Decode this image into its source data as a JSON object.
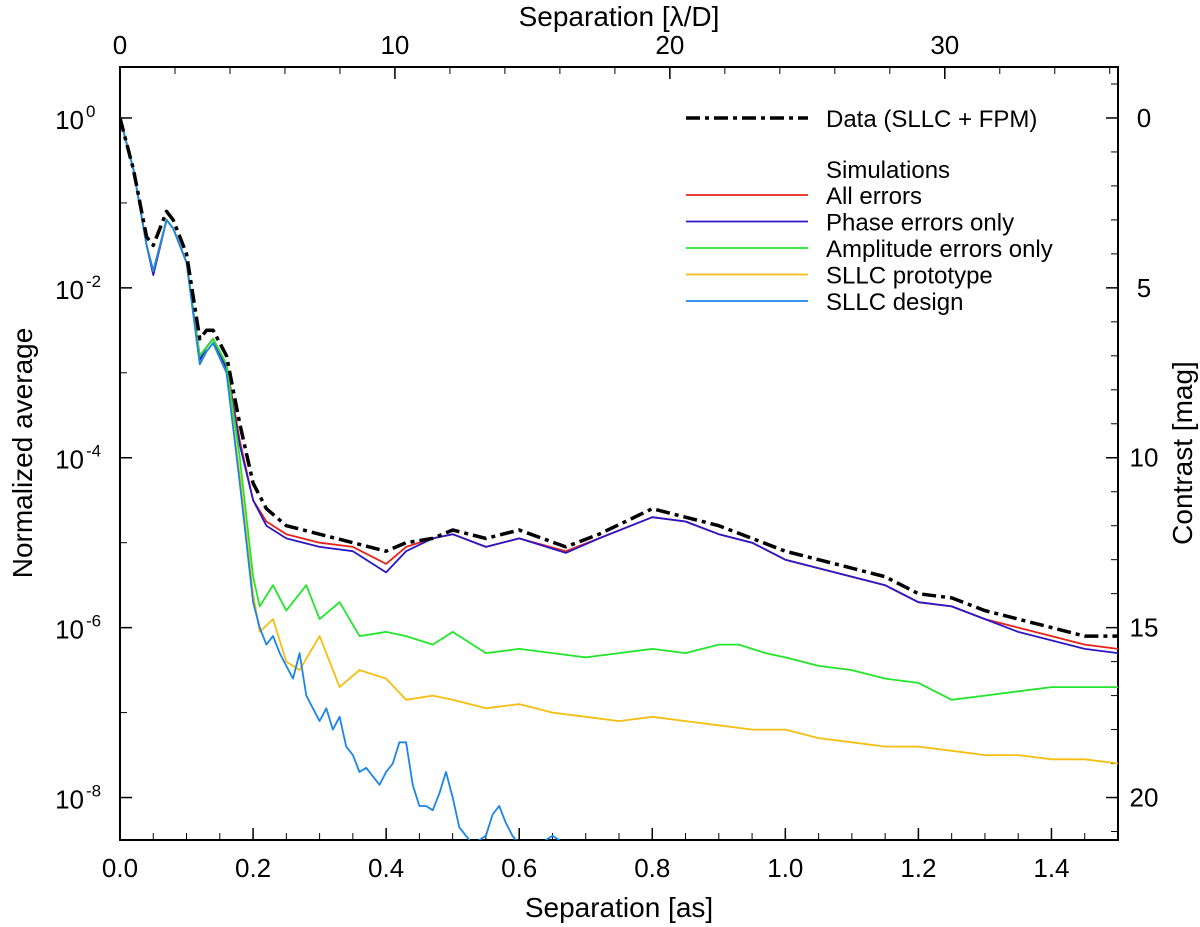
{
  "chart_data": {
    "type": "line",
    "xlabel": "Separation [as]",
    "x2label": "Separation [λ/D]",
    "ylabel": "Normalized average",
    "y2label": "Contrast [mag]",
    "xlim": [
      0.0,
      1.5
    ],
    "x2lim": [
      0,
      36.3
    ],
    "ylim_log10": [
      -8.5,
      0.6
    ],
    "y2lim": [
      -1.5,
      21.25
    ],
    "yscale": "log",
    "grid": false,
    "legend_position": "top-right",
    "x_ticks": [
      "0.0",
      "0.2",
      "0.4",
      "0.6",
      "0.8",
      "1.0",
      "1.2",
      "1.4"
    ],
    "x_tick_values": [
      0.0,
      0.2,
      0.4,
      0.6,
      0.8,
      1.0,
      1.2,
      1.4
    ],
    "x2_ticks": [
      "0",
      "10",
      "20",
      "30"
    ],
    "x2_tick_values": [
      0,
      10,
      20,
      30
    ],
    "y_ticks": [
      {
        "base": "10",
        "exp": "0",
        "log10": 0
      },
      {
        "base": "10",
        "exp": "-2",
        "log10": -2
      },
      {
        "base": "10",
        "exp": "-4",
        "log10": -4
      },
      {
        "base": "10",
        "exp": "-6",
        "log10": -6
      },
      {
        "base": "10",
        "exp": "-8",
        "log10": -8
      }
    ],
    "y2_ticks": [
      "0",
      "5",
      "10",
      "15",
      "20"
    ],
    "y2_tick_values": [
      0,
      5,
      10,
      15,
      20
    ],
    "legend_heading": "Simulations",
    "series": [
      {
        "name": "Data (SLLC + FPM)",
        "color": "#000000",
        "style": "dash-dot",
        "x": [
          0.0,
          0.02,
          0.04,
          0.05,
          0.07,
          0.08,
          0.1,
          0.12,
          0.13,
          0.14,
          0.16,
          0.18,
          0.2,
          0.22,
          0.25,
          0.3,
          0.35,
          0.4,
          0.43,
          0.47,
          0.5,
          0.55,
          0.6,
          0.67,
          0.72,
          0.8,
          0.85,
          0.9,
          0.95,
          1.0,
          1.05,
          1.1,
          1.15,
          1.2,
          1.25,
          1.3,
          1.35,
          1.4,
          1.45,
          1.5
        ],
        "y_log10": [
          0,
          -0.6,
          -1.4,
          -1.5,
          -1.1,
          -1.2,
          -1.6,
          -2.6,
          -2.5,
          -2.5,
          -2.8,
          -3.6,
          -4.3,
          -4.6,
          -4.8,
          -4.9,
          -5.0,
          -5.1,
          -5.0,
          -4.95,
          -4.85,
          -4.95,
          -4.85,
          -5.05,
          -4.9,
          -4.6,
          -4.7,
          -4.8,
          -4.95,
          -5.1,
          -5.2,
          -5.3,
          -5.4,
          -5.6,
          -5.65,
          -5.8,
          -5.9,
          -6.0,
          -6.1,
          -6.1
        ]
      },
      {
        "name": "All errors",
        "color": "#e8231a",
        "style": "solid",
        "x": [
          0.0,
          0.02,
          0.04,
          0.05,
          0.07,
          0.08,
          0.1,
          0.12,
          0.13,
          0.14,
          0.16,
          0.18,
          0.2,
          0.22,
          0.25,
          0.3,
          0.35,
          0.4,
          0.43,
          0.47,
          0.5,
          0.55,
          0.6,
          0.67,
          0.72,
          0.8,
          0.85,
          0.9,
          0.95,
          1.0,
          1.05,
          1.1,
          1.15,
          1.2,
          1.25,
          1.3,
          1.35,
          1.4,
          1.45,
          1.5
        ],
        "y_log10": [
          0,
          -0.6,
          -1.5,
          -1.8,
          -1.2,
          -1.3,
          -1.7,
          -2.8,
          -2.7,
          -2.6,
          -2.9,
          -3.8,
          -4.5,
          -4.75,
          -4.9,
          -5.0,
          -5.05,
          -5.25,
          -5.05,
          -4.95,
          -4.9,
          -5.05,
          -4.95,
          -5.1,
          -4.95,
          -4.7,
          -4.75,
          -4.9,
          -5.0,
          -5.2,
          -5.3,
          -5.4,
          -5.5,
          -5.7,
          -5.75,
          -5.9,
          -6.0,
          -6.1,
          -6.2,
          -6.25
        ]
      },
      {
        "name": "Phase errors only",
        "color": "#2a18c8",
        "style": "solid",
        "x": [
          0.0,
          0.02,
          0.04,
          0.05,
          0.07,
          0.08,
          0.1,
          0.12,
          0.13,
          0.14,
          0.16,
          0.18,
          0.2,
          0.22,
          0.25,
          0.3,
          0.35,
          0.4,
          0.43,
          0.47,
          0.5,
          0.55,
          0.6,
          0.67,
          0.72,
          0.8,
          0.85,
          0.9,
          0.95,
          1.0,
          1.05,
          1.1,
          1.15,
          1.2,
          1.25,
          1.3,
          1.35,
          1.4,
          1.45,
          1.5
        ],
        "y_log10": [
          0,
          -0.6,
          -1.5,
          -1.85,
          -1.2,
          -1.3,
          -1.7,
          -2.85,
          -2.7,
          -2.6,
          -2.95,
          -3.85,
          -4.5,
          -4.8,
          -4.95,
          -5.05,
          -5.1,
          -5.35,
          -5.1,
          -4.95,
          -4.9,
          -5.05,
          -4.95,
          -5.12,
          -4.95,
          -4.7,
          -4.75,
          -4.9,
          -5.0,
          -5.2,
          -5.3,
          -5.4,
          -5.5,
          -5.7,
          -5.75,
          -5.9,
          -6.05,
          -6.15,
          -6.25,
          -6.3
        ]
      },
      {
        "name": "Amplitude errors only",
        "color": "#22e62a",
        "style": "solid",
        "x": [
          0.0,
          0.02,
          0.04,
          0.05,
          0.07,
          0.08,
          0.1,
          0.12,
          0.13,
          0.14,
          0.16,
          0.18,
          0.2,
          0.21,
          0.23,
          0.25,
          0.28,
          0.3,
          0.33,
          0.36,
          0.4,
          0.43,
          0.47,
          0.5,
          0.55,
          0.6,
          0.65,
          0.7,
          0.75,
          0.8,
          0.85,
          0.9,
          0.93,
          0.97,
          1.0,
          1.05,
          1.1,
          1.15,
          1.2,
          1.25,
          1.3,
          1.35,
          1.4,
          1.45,
          1.5
        ],
        "y_log10": [
          0,
          -0.6,
          -1.5,
          -1.8,
          -1.2,
          -1.3,
          -1.7,
          -2.8,
          -2.7,
          -2.6,
          -2.9,
          -4.0,
          -5.4,
          -5.75,
          -5.5,
          -5.8,
          -5.5,
          -5.9,
          -5.7,
          -6.1,
          -6.05,
          -6.1,
          -6.2,
          -6.05,
          -6.3,
          -6.25,
          -6.3,
          -6.35,
          -6.3,
          -6.25,
          -6.3,
          -6.2,
          -6.2,
          -6.3,
          -6.35,
          -6.45,
          -6.5,
          -6.6,
          -6.65,
          -6.85,
          -6.8,
          -6.75,
          -6.7,
          -6.7,
          -6.7
        ]
      },
      {
        "name": "SLLC prototype",
        "color": "#f6be10",
        "style": "solid",
        "x": [
          0.0,
          0.02,
          0.04,
          0.05,
          0.07,
          0.08,
          0.1,
          0.12,
          0.13,
          0.14,
          0.16,
          0.18,
          0.2,
          0.21,
          0.23,
          0.25,
          0.27,
          0.3,
          0.33,
          0.36,
          0.4,
          0.43,
          0.47,
          0.5,
          0.55,
          0.6,
          0.65,
          0.7,
          0.75,
          0.8,
          0.85,
          0.9,
          0.95,
          1.0,
          1.05,
          1.1,
          1.15,
          1.2,
          1.25,
          1.3,
          1.35,
          1.4,
          1.45,
          1.5
        ],
        "y_log10": [
          0,
          -0.6,
          -1.5,
          -1.8,
          -1.2,
          -1.3,
          -1.7,
          -2.9,
          -2.75,
          -2.65,
          -3.0,
          -4.2,
          -5.6,
          -6.05,
          -5.9,
          -6.4,
          -6.5,
          -6.1,
          -6.7,
          -6.5,
          -6.6,
          -6.85,
          -6.8,
          -6.85,
          -6.95,
          -6.9,
          -7.0,
          -7.05,
          -7.1,
          -7.05,
          -7.1,
          -7.15,
          -7.2,
          -7.2,
          -7.3,
          -7.35,
          -7.4,
          -7.4,
          -7.45,
          -7.5,
          -7.5,
          -7.55,
          -7.55,
          -7.6
        ]
      },
      {
        "name": "SLLC design",
        "color": "#1a86e8",
        "style": "solid",
        "x": [
          0.0,
          0.02,
          0.04,
          0.05,
          0.07,
          0.08,
          0.1,
          0.12,
          0.13,
          0.14,
          0.16,
          0.18,
          0.2,
          0.21,
          0.22,
          0.23,
          0.24,
          0.25,
          0.26,
          0.27,
          0.28,
          0.29,
          0.3,
          0.31,
          0.32,
          0.33,
          0.34,
          0.35,
          0.36,
          0.37,
          0.38,
          0.39,
          0.4,
          0.41,
          0.42,
          0.43,
          0.44,
          0.45,
          0.46,
          0.47,
          0.48,
          0.49,
          0.5,
          0.51,
          0.52,
          0.53,
          0.54,
          0.55,
          0.56,
          0.57,
          0.58,
          0.59,
          0.6,
          0.61,
          0.62,
          0.63,
          0.64,
          0.65,
          0.66,
          0.67,
          0.68,
          0.69,
          0.7
        ],
        "y_log10": [
          0,
          -0.6,
          -1.5,
          -1.8,
          -1.2,
          -1.3,
          -1.7,
          -2.9,
          -2.75,
          -2.65,
          -3.0,
          -4.3,
          -5.7,
          -6.0,
          -6.2,
          -6.1,
          -6.3,
          -6.45,
          -6.6,
          -6.3,
          -6.8,
          -6.95,
          -7.1,
          -6.95,
          -7.2,
          -7.05,
          -7.4,
          -7.5,
          -7.7,
          -7.65,
          -7.75,
          -7.85,
          -7.7,
          -7.6,
          -7.35,
          -7.35,
          -7.85,
          -8.1,
          -8.1,
          -8.15,
          -7.95,
          -7.7,
          -8.0,
          -8.35,
          -8.45,
          -8.55,
          -8.5,
          -8.45,
          -8.2,
          -8.1,
          -8.3,
          -8.45,
          -8.55,
          -8.6,
          -8.7,
          -8.6,
          -8.5,
          -8.45,
          -8.5,
          -8.6,
          -8.7,
          -8.8,
          -8.9
        ]
      }
    ]
  }
}
